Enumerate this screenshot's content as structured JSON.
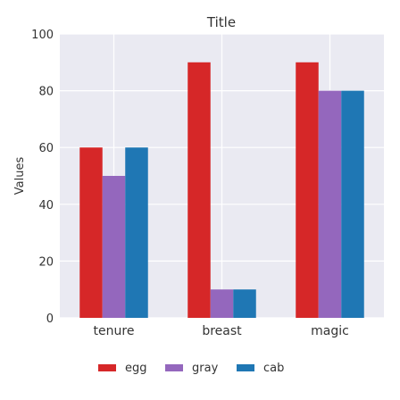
{
  "chart_data": {
    "type": "bar",
    "title": "Title",
    "xlabel": "",
    "ylabel": "Values",
    "categories": [
      "tenure",
      "breast",
      "magic"
    ],
    "series": [
      {
        "name": "egg",
        "color": "#d62728",
        "values": [
          60,
          90,
          90
        ]
      },
      {
        "name": "gray",
        "color": "#9467bd",
        "values": [
          50,
          10,
          80
        ]
      },
      {
        "name": "cab",
        "color": "#1f77b4",
        "values": [
          60,
          10,
          80
        ]
      }
    ],
    "ylim": [
      0,
      100
    ],
    "yticks": [
      0,
      20,
      40,
      60,
      80,
      100
    ],
    "grid": true,
    "legend_position": "bottom",
    "plot_background": "#eaeaf2"
  }
}
